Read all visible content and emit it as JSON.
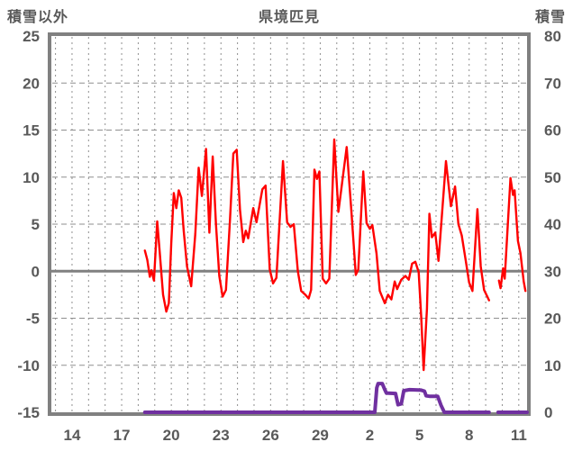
{
  "chart_data": {
    "type": "line",
    "title": "県境匹見",
    "grid": true,
    "left_axis": {
      "label": "積雪以外",
      "min": -15,
      "max": 25,
      "step": 5,
      "ticks": [
        25,
        20,
        15,
        10,
        5,
        0,
        -5,
        -10,
        -15
      ]
    },
    "right_axis": {
      "label": "積雪",
      "min": 0,
      "max": 80,
      "step": 10,
      "ticks": [
        80,
        70,
        60,
        50,
        40,
        30,
        20,
        10,
        0
      ]
    },
    "x_axis": {
      "domain_days": [
        12.75,
        41.5
      ],
      "gridline_every_days": 1,
      "tick_labels": [
        "14",
        "17",
        "20",
        "23",
        "26",
        "29",
        "2",
        "5",
        "8",
        "11"
      ],
      "tick_days": [
        14,
        17,
        20,
        23,
        26,
        29,
        32,
        35,
        38,
        41
      ]
    },
    "colors": {
      "temperature_line": "#ff0000",
      "snow_line": "#7030a0",
      "axis_frame": "#808080",
      "zero_line": "#808080",
      "gridline": "#8f8f8f",
      "label_text": "#595959"
    },
    "series": [
      {
        "name": "積雪以外",
        "axis": "left",
        "color": "#ff0000",
        "segments": [
          [
            [
              18.4,
              2.2
            ],
            [
              18.55,
              1.2
            ],
            [
              18.7,
              -0.6
            ],
            [
              18.8,
              0.1
            ],
            [
              18.95,
              -1.0
            ],
            [
              19.15,
              5.3
            ],
            [
              19.3,
              2.0
            ],
            [
              19.5,
              -2.5
            ],
            [
              19.7,
              -4.3
            ],
            [
              19.85,
              -3.4
            ],
            [
              20.0,
              3.0
            ],
            [
              20.15,
              8.3
            ],
            [
              20.3,
              6.7
            ],
            [
              20.45,
              8.6
            ],
            [
              20.6,
              7.8
            ],
            [
              20.75,
              4.3
            ],
            [
              20.95,
              0.5
            ],
            [
              21.2,
              -1.6
            ],
            [
              21.45,
              4.0
            ],
            [
              21.65,
              11.0
            ],
            [
              21.85,
              8.0
            ],
            [
              22.1,
              13.0
            ],
            [
              22.3,
              4.1
            ],
            [
              22.5,
              12.2
            ],
            [
              22.7,
              5.0
            ],
            [
              22.9,
              -0.5
            ],
            [
              23.1,
              -2.7
            ],
            [
              23.3,
              -2.0
            ],
            [
              23.55,
              5.5
            ],
            [
              23.75,
              12.5
            ],
            [
              23.95,
              12.9
            ],
            [
              24.15,
              6.5
            ],
            [
              24.35,
              3.1
            ],
            [
              24.5,
              4.3
            ],
            [
              24.65,
              3.5
            ],
            [
              24.95,
              6.7
            ],
            [
              25.15,
              5.2
            ],
            [
              25.5,
              8.7
            ],
            [
              25.7,
              9.1
            ],
            [
              25.95,
              0.2
            ],
            [
              26.15,
              -1.3
            ],
            [
              26.35,
              -0.7
            ],
            [
              26.75,
              11.7
            ],
            [
              27.0,
              5.2
            ],
            [
              27.2,
              4.7
            ],
            [
              27.4,
              5.0
            ],
            [
              27.65,
              0.0
            ],
            [
              27.85,
              -2.1
            ],
            [
              28.1,
              -2.5
            ],
            [
              28.3,
              -2.9
            ],
            [
              28.45,
              -2.0
            ],
            [
              28.65,
              10.8
            ],
            [
              28.8,
              9.8
            ],
            [
              28.95,
              10.6
            ],
            [
              29.15,
              -0.8
            ],
            [
              29.35,
              -1.3
            ],
            [
              29.55,
              -0.8
            ],
            [
              29.85,
              14.0
            ],
            [
              30.1,
              6.3
            ],
            [
              30.6,
              13.2
            ],
            [
              30.9,
              6.0
            ],
            [
              31.15,
              -0.4
            ],
            [
              31.3,
              0.2
            ],
            [
              31.6,
              10.6
            ],
            [
              31.8,
              5.1
            ],
            [
              32.0,
              4.5
            ],
            [
              32.15,
              4.9
            ],
            [
              32.4,
              1.9
            ],
            [
              32.6,
              -2.1
            ],
            [
              32.9,
              -3.4
            ],
            [
              33.1,
              -2.5
            ],
            [
              33.3,
              -3.0
            ],
            [
              33.5,
              -1.1
            ],
            [
              33.65,
              -1.9
            ],
            [
              33.9,
              -0.9
            ],
            [
              34.15,
              -0.5
            ],
            [
              34.35,
              -0.9
            ],
            [
              34.55,
              0.8
            ],
            [
              34.75,
              1.0
            ],
            [
              34.95,
              -0.1
            ],
            [
              35.1,
              -4.8
            ],
            [
              35.25,
              -10.5
            ],
            [
              35.45,
              -4.0
            ],
            [
              35.6,
              6.1
            ],
            [
              35.75,
              3.6
            ],
            [
              35.95,
              4.1
            ],
            [
              36.15,
              1.1
            ],
            [
              36.6,
              11.7
            ],
            [
              36.9,
              6.9
            ],
            [
              37.15,
              9.0
            ],
            [
              37.35,
              5.0
            ],
            [
              37.55,
              3.8
            ],
            [
              37.8,
              1.1
            ],
            [
              38.0,
              -1.2
            ],
            [
              38.2,
              -2.1
            ],
            [
              38.5,
              6.6
            ],
            [
              38.7,
              0.5
            ],
            [
              38.9,
              -2.0
            ],
            [
              39.1,
              -2.7
            ],
            [
              39.2,
              -3.1
            ]
          ],
          [
            [
              39.8,
              -1.0
            ],
            [
              39.9,
              -1.8
            ],
            [
              40.05,
              0.3
            ],
            [
              40.15,
              -0.8
            ],
            [
              40.5,
              9.9
            ],
            [
              40.65,
              8.1
            ],
            [
              40.75,
              8.6
            ],
            [
              40.95,
              3.2
            ],
            [
              41.1,
              1.9
            ],
            [
              41.3,
              -1.1
            ],
            [
              41.4,
              -2.1
            ]
          ]
        ]
      },
      {
        "name": "積雪",
        "axis": "right",
        "color": "#7030a0",
        "segments": [
          [
            [
              18.4,
              0
            ],
            [
              32.3,
              0
            ],
            [
              32.42,
              5.2
            ],
            [
              32.5,
              6.1
            ],
            [
              32.75,
              6.1
            ],
            [
              32.9,
              4.8
            ],
            [
              33.0,
              4.1
            ],
            [
              33.55,
              4.0
            ],
            [
              33.7,
              1.6
            ],
            [
              33.9,
              1.8
            ],
            [
              34.05,
              4.6
            ],
            [
              34.4,
              4.8
            ],
            [
              35.1,
              4.7
            ],
            [
              35.3,
              4.5
            ],
            [
              35.4,
              3.5
            ],
            [
              35.6,
              3.4
            ],
            [
              36.1,
              3.4
            ],
            [
              36.3,
              1.5
            ],
            [
              36.5,
              0
            ],
            [
              39.2,
              0
            ]
          ],
          [
            [
              39.75,
              0
            ],
            [
              41.5,
              0
            ]
          ]
        ]
      }
    ]
  }
}
